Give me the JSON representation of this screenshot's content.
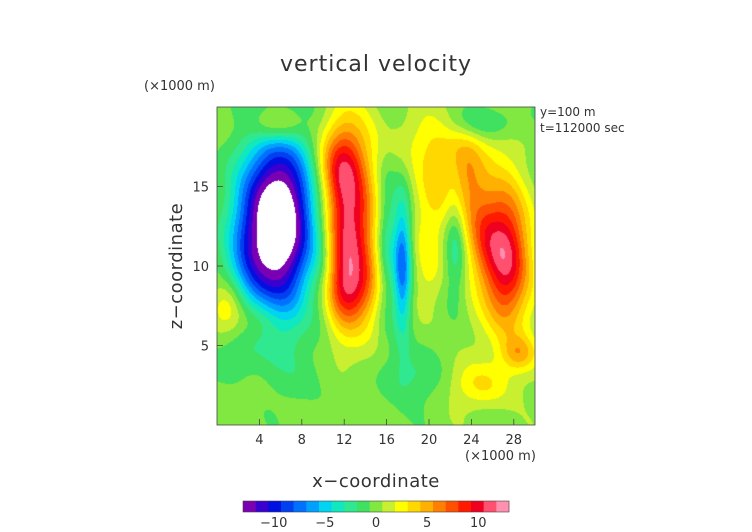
{
  "chart_data": {
    "type": "heatmap",
    "title": "vertical velocity",
    "xlabel": "x−coordinate",
    "ylabel": "z−coordinate",
    "x_unit": "(×1000 m)",
    "y_unit": "(×1000 m)",
    "annotations": [
      "y=100 m",
      "t=112000 sec"
    ],
    "xlim": [
      0,
      30
    ],
    "ylim": [
      0,
      20
    ],
    "x_ticks": [
      4,
      8,
      12,
      16,
      20,
      24,
      28
    ],
    "y_ticks": [
      5,
      10,
      15
    ],
    "colorbar": {
      "ticks": [
        -10,
        -5,
        0,
        5,
        10
      ],
      "range": [
        -13,
        13
      ],
      "colors": [
        "#7a00b4",
        "#3a00d0",
        "#0010e0",
        "#0040f0",
        "#0070ff",
        "#00a0ff",
        "#00d4f0",
        "#10e8c0",
        "#30e890",
        "#40e060",
        "#80e840",
        "#c8f030",
        "#ffff00",
        "#ffd800",
        "#ffb000",
        "#ff8000",
        "#ff5000",
        "#ff1a00",
        "#f00020",
        "#ff5070",
        "#ff90b0"
      ]
    },
    "features": [
      {
        "x": 6.0,
        "z": 12.0,
        "value": -13.5,
        "sx": 2.1,
        "sz": 3.6
      },
      {
        "x": 5.5,
        "z": 15.0,
        "value": -5.0,
        "sx": 2.4,
        "sz": 3.0
      },
      {
        "x": 3.0,
        "z": 10.5,
        "value": -5.0,
        "sx": 1.6,
        "sz": 3.0
      },
      {
        "x": 12.5,
        "z": 12.0,
        "value": 11.0,
        "sx": 1.8,
        "sz": 4.0
      },
      {
        "x": 11.5,
        "z": 16.5,
        "value": 5.0,
        "sx": 1.5,
        "sz": 1.8
      },
      {
        "x": 12.5,
        "z": 8.5,
        "value": 4.0,
        "sx": 2.0,
        "sz": 1.4
      },
      {
        "x": 17.5,
        "z": 10.0,
        "value": -8.0,
        "sx": 0.6,
        "sz": 3.0
      },
      {
        "x": 16.0,
        "z": 11.0,
        "value": -3.5,
        "sx": 0.7,
        "sz": 3.5
      },
      {
        "x": 20.5,
        "z": 14.5,
        "value": 3.0,
        "sx": 1.3,
        "sz": 2.5
      },
      {
        "x": 20.0,
        "z": 9.5,
        "value": 2.0,
        "sx": 1.0,
        "sz": 2.0
      },
      {
        "x": 23.5,
        "z": 15.5,
        "value": 5.0,
        "sx": 1.3,
        "sz": 2.0
      },
      {
        "x": 22.5,
        "z": 11.5,
        "value": -3.0,
        "sx": 0.7,
        "sz": 2.5
      },
      {
        "x": 27.3,
        "z": 10.5,
        "value": 11.0,
        "sx": 1.6,
        "sz": 3.2
      },
      {
        "x": 25.0,
        "z": 12.0,
        "value": 4.0,
        "sx": 1.2,
        "sz": 2.0
      },
      {
        "x": 5.5,
        "z": 18.8,
        "value": 4.0,
        "sx": 1.8,
        "sz": 0.8
      },
      {
        "x": 21.0,
        "z": 18.0,
        "value": 2.0,
        "sx": 4.0,
        "sz": 1.5
      },
      {
        "x": 25.0,
        "z": 19.0,
        "value": -3.0,
        "sx": 2.5,
        "sz": 0.8
      },
      {
        "x": 1.0,
        "z": 7.5,
        "value": 4.0,
        "sx": 1.2,
        "sz": 1.2
      },
      {
        "x": 3.5,
        "z": 6.5,
        "value": 2.5,
        "sx": 1.5,
        "sz": 1.0
      },
      {
        "x": 2.0,
        "z": 4.5,
        "value": -1.5,
        "sx": 1.5,
        "sz": 1.2
      },
      {
        "x": 25.0,
        "z": 2.5,
        "value": 3.0,
        "sx": 2.0,
        "sz": 1.0
      },
      {
        "x": 28.5,
        "z": 4.5,
        "value": 4.0,
        "sx": 1.2,
        "sz": 0.8
      },
      {
        "x": 18.0,
        "z": 3.0,
        "value": -2.0,
        "sx": 2.0,
        "sz": 1.2
      },
      {
        "x": 8.5,
        "z": 3.0,
        "value": -1.0,
        "sx": 2.0,
        "sz": 1.5
      },
      {
        "x": 10.0,
        "z": 10.0,
        "value": -3.0,
        "sx": 1.0,
        "sz": 3.0
      }
    ]
  }
}
